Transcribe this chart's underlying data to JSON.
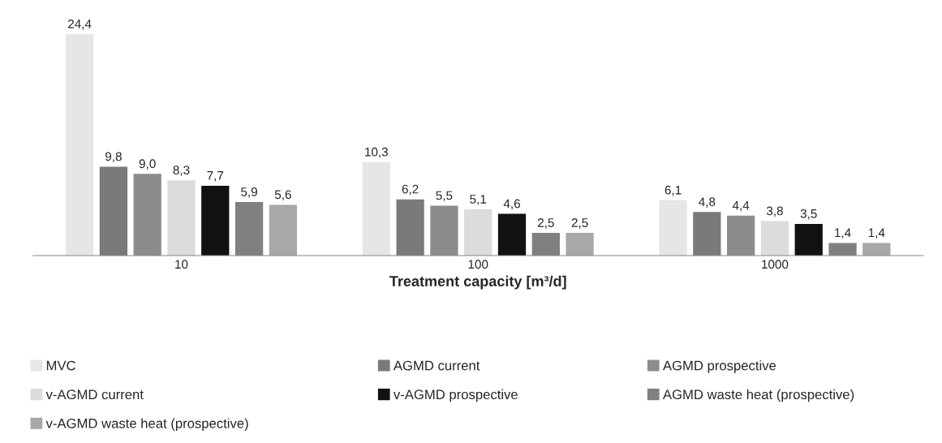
{
  "chart_data": {
    "type": "bar",
    "xlabel": "Treatment capacity [m³/d]",
    "categories": [
      "10",
      "100",
      "1000"
    ],
    "series": [
      {
        "name": "MVC",
        "color": "#e6e6e6",
        "values": [
          24.4,
          10.3,
          6.1
        ],
        "value_labels": [
          "24,4",
          "10,3",
          "6,1"
        ]
      },
      {
        "name": "AGMD current",
        "color": "#7a7a7a",
        "values": [
          9.8,
          6.2,
          4.8
        ],
        "value_labels": [
          "9,8",
          "6,2",
          "4,8"
        ]
      },
      {
        "name": "AGMD prospective",
        "color": "#8c8c8c",
        "values": [
          9.0,
          5.5,
          4.4
        ],
        "value_labels": [
          "9,0",
          "5,5",
          "4,4"
        ]
      },
      {
        "name": "v-AGMD current",
        "color": "#dcdcdc",
        "values": [
          8.3,
          5.1,
          3.8
        ],
        "value_labels": [
          "8,3",
          "5,1",
          "3,8"
        ]
      },
      {
        "name": "v-AGMD prospective",
        "color": "#111111",
        "values": [
          7.7,
          4.6,
          3.5
        ],
        "value_labels": [
          "7,7",
          "4,6",
          "3,5"
        ]
      },
      {
        "name": "AGMD waste heat (prospective)",
        "color": "#808080",
        "values": [
          5.9,
          2.5,
          1.4
        ],
        "value_labels": [
          "5,9",
          "2,5",
          "1,4"
        ]
      },
      {
        "name": "v-AGMD waste heat (prospective)",
        "color": "#a8a8a8",
        "values": [
          5.6,
          2.5,
          1.4
        ],
        "value_labels": [
          "5,6",
          "2,5",
          "1,4"
        ]
      }
    ],
    "legend": "bottom",
    "tick_labels": "x",
    "grid": false
  }
}
